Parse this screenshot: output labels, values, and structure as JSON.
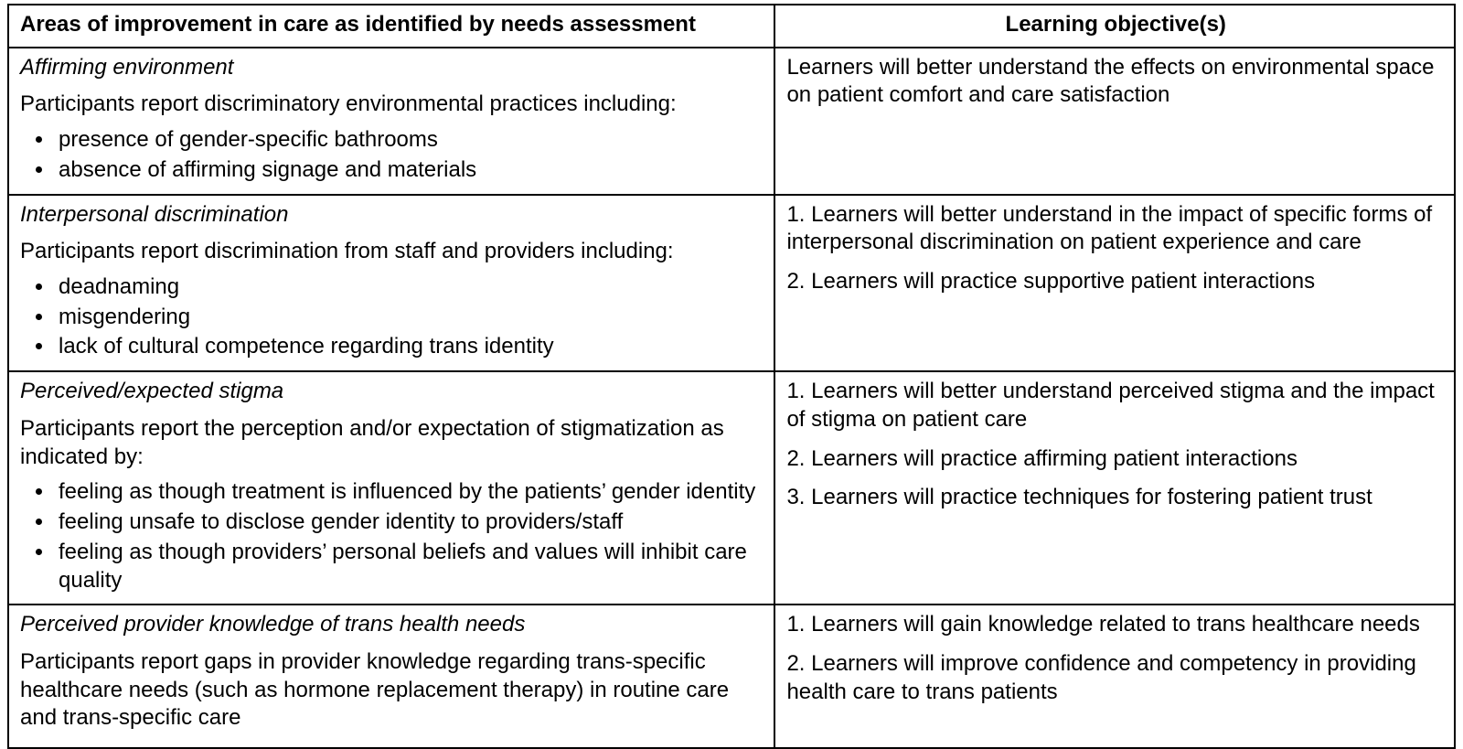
{
  "colors": {
    "text": "#000000",
    "background": "#ffffff",
    "border": "#000000"
  },
  "typography": {
    "font_family": "Arial, Helvetica, sans-serif",
    "base_fontsize_pt": 18,
    "header_weight": "bold",
    "section_title_style": "italic"
  },
  "table": {
    "columns": [
      {
        "key": "area",
        "header": "Areas of improvement in care as identified by needs assessment",
        "align": "left",
        "width_pct": 53
      },
      {
        "key": "objectives",
        "header": "Learning objective(s)",
        "align": "center",
        "width_pct": 47
      }
    ],
    "rows": [
      {
        "title": "Affirming environment",
        "intro": "Participants report discriminatory environmental practices including:",
        "bullets": [
          "presence of gender-specific bathrooms",
          "absence of affirming signage and materials"
        ],
        "objectives": [
          "Learners will better understand the effects on environmental space on patient comfort and care satisfaction"
        ],
        "objectives_numbered": false
      },
      {
        "title": "Interpersonal discrimination",
        "intro": "Participants report discrimination from staff and providers including:",
        "bullets": [
          "deadnaming",
          "misgendering",
          "lack of cultural competence regarding trans identity"
        ],
        "objectives": [
          "Learners will better understand in the impact of specific forms of interpersonal discrimination on patient experience and care",
          "Learners will practice supportive patient interactions"
        ],
        "objectives_numbered": true
      },
      {
        "title": "Perceived/expected stigma",
        "intro": "Participants report the perception and/or expectation of stigmatization as indicated by:",
        "bullets": [
          "feeling as though treatment is influenced by the patients’ gender identity",
          "feeling unsafe to disclose gender identity to providers/staff",
          "feeling as though providers’ personal beliefs and values will inhibit care quality"
        ],
        "objectives": [
          "Learners will better understand perceived stigma and the impact of stigma on patient care",
          "Learners will practice affirming patient interactions",
          "Learners will practice techniques for fostering patient trust"
        ],
        "objectives_numbered": true
      },
      {
        "title": "Perceived provider knowledge of trans health needs",
        "intro": "Participants report gaps in provider knowledge regarding trans-specific healthcare needs (such as hormone replacement therapy) in routine care and trans-specific care",
        "bullets": [],
        "objectives": [
          "Learners will gain knowledge related to trans healthcare needs",
          "Learners will improve confidence and competency in providing health care to trans patients"
        ],
        "objectives_numbered": true
      }
    ]
  }
}
